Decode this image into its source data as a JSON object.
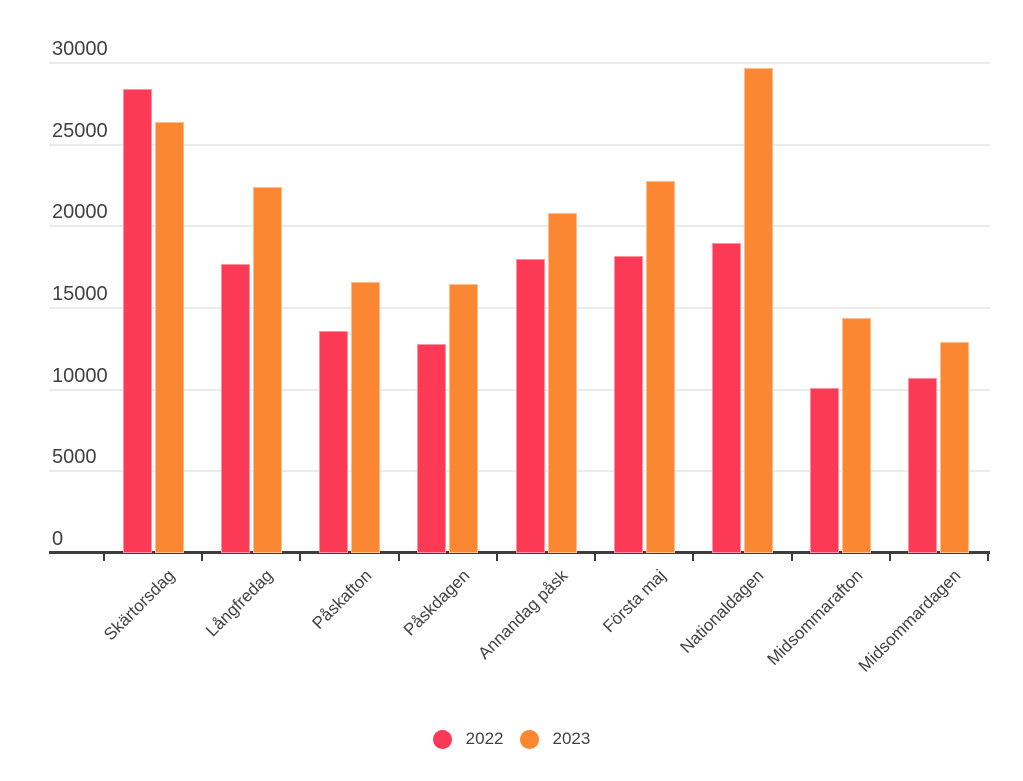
{
  "chart_data": {
    "type": "bar",
    "title": "",
    "xlabel": "",
    "ylabel": "",
    "categories": [
      "Skärtorsdag",
      "Långfredag",
      "Påskafton",
      "Påskdagen",
      "Annandag påsk",
      "Första maj",
      "Nationaldagen",
      "Midsommarafton",
      "Midsommardagen"
    ],
    "series": [
      {
        "name": "2022",
        "color": "#FC3A56",
        "values": [
          28400,
          17700,
          13600,
          12800,
          18000,
          18200,
          19000,
          10100,
          10700
        ]
      },
      {
        "name": "2023",
        "color": "#FB8732",
        "values": [
          26400,
          22400,
          16600,
          16500,
          20800,
          22800,
          29700,
          14400,
          12900
        ]
      }
    ],
    "ylim": [
      0,
      30000
    ],
    "y_ticks": [
      0,
      5000,
      10000,
      15000,
      20000,
      25000,
      30000
    ],
    "grid": true,
    "x_label_rotation": -45,
    "legend_position": "bottom"
  },
  "legend": {
    "items": [
      {
        "label": "2022",
        "color": "#FC3A56"
      },
      {
        "label": "2023",
        "color": "#FB8732"
      }
    ]
  },
  "styles": {
    "background": "#FFFFFF",
    "grid_color": "#EBEBEB",
    "axis_color": "#3D3D3D",
    "text_color": "#424242"
  }
}
